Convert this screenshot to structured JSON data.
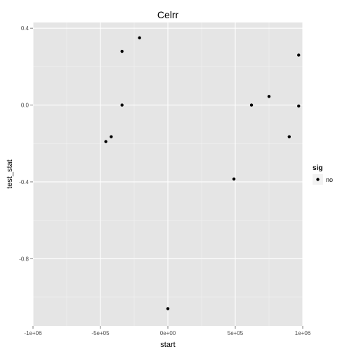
{
  "chart_data": {
    "type": "scatter",
    "title": "Celrr",
    "xlabel": "start",
    "ylabel": "test_stat",
    "xlim": [
      -1000000,
      1000000
    ],
    "ylim": [
      -1.15,
      0.43
    ],
    "x_ticks": [
      {
        "value": -1000000,
        "label": "-1e+06"
      },
      {
        "value": -500000,
        "label": "-5e+05"
      },
      {
        "value": 0,
        "label": "0e+00"
      },
      {
        "value": 500000,
        "label": "5e+05"
      },
      {
        "value": 1000000,
        "label": "1e+06"
      }
    ],
    "y_ticks": [
      {
        "value": 0.4,
        "label": "0.4"
      },
      {
        "value": 0.0,
        "label": "0.0"
      },
      {
        "value": -0.4,
        "label": "-0.4"
      },
      {
        "value": -0.8,
        "label": "-0.8"
      }
    ],
    "grid": true,
    "panel_background": "#e5e5e5",
    "grid_color": "#ffffff",
    "point_color": "#000000",
    "legend": {
      "title": "sig",
      "position": "right",
      "entries": [
        {
          "label": "no",
          "color": "#000000"
        }
      ]
    },
    "series": [
      {
        "name": "no",
        "points": [
          {
            "x": -460000,
            "y": -0.19
          },
          {
            "x": -420000,
            "y": -0.165
          },
          {
            "x": -340000,
            "y": 0.28
          },
          {
            "x": -340000,
            "y": 0.0
          },
          {
            "x": -210000,
            "y": 0.35
          },
          {
            "x": 0,
            "y": -1.06
          },
          {
            "x": 490000,
            "y": -0.385
          },
          {
            "x": 620000,
            "y": 0.0
          },
          {
            "x": 750000,
            "y": 0.045
          },
          {
            "x": 900000,
            "y": -0.165
          },
          {
            "x": 970000,
            "y": 0.26
          },
          {
            "x": 970000,
            "y": -0.005
          }
        ]
      }
    ]
  }
}
